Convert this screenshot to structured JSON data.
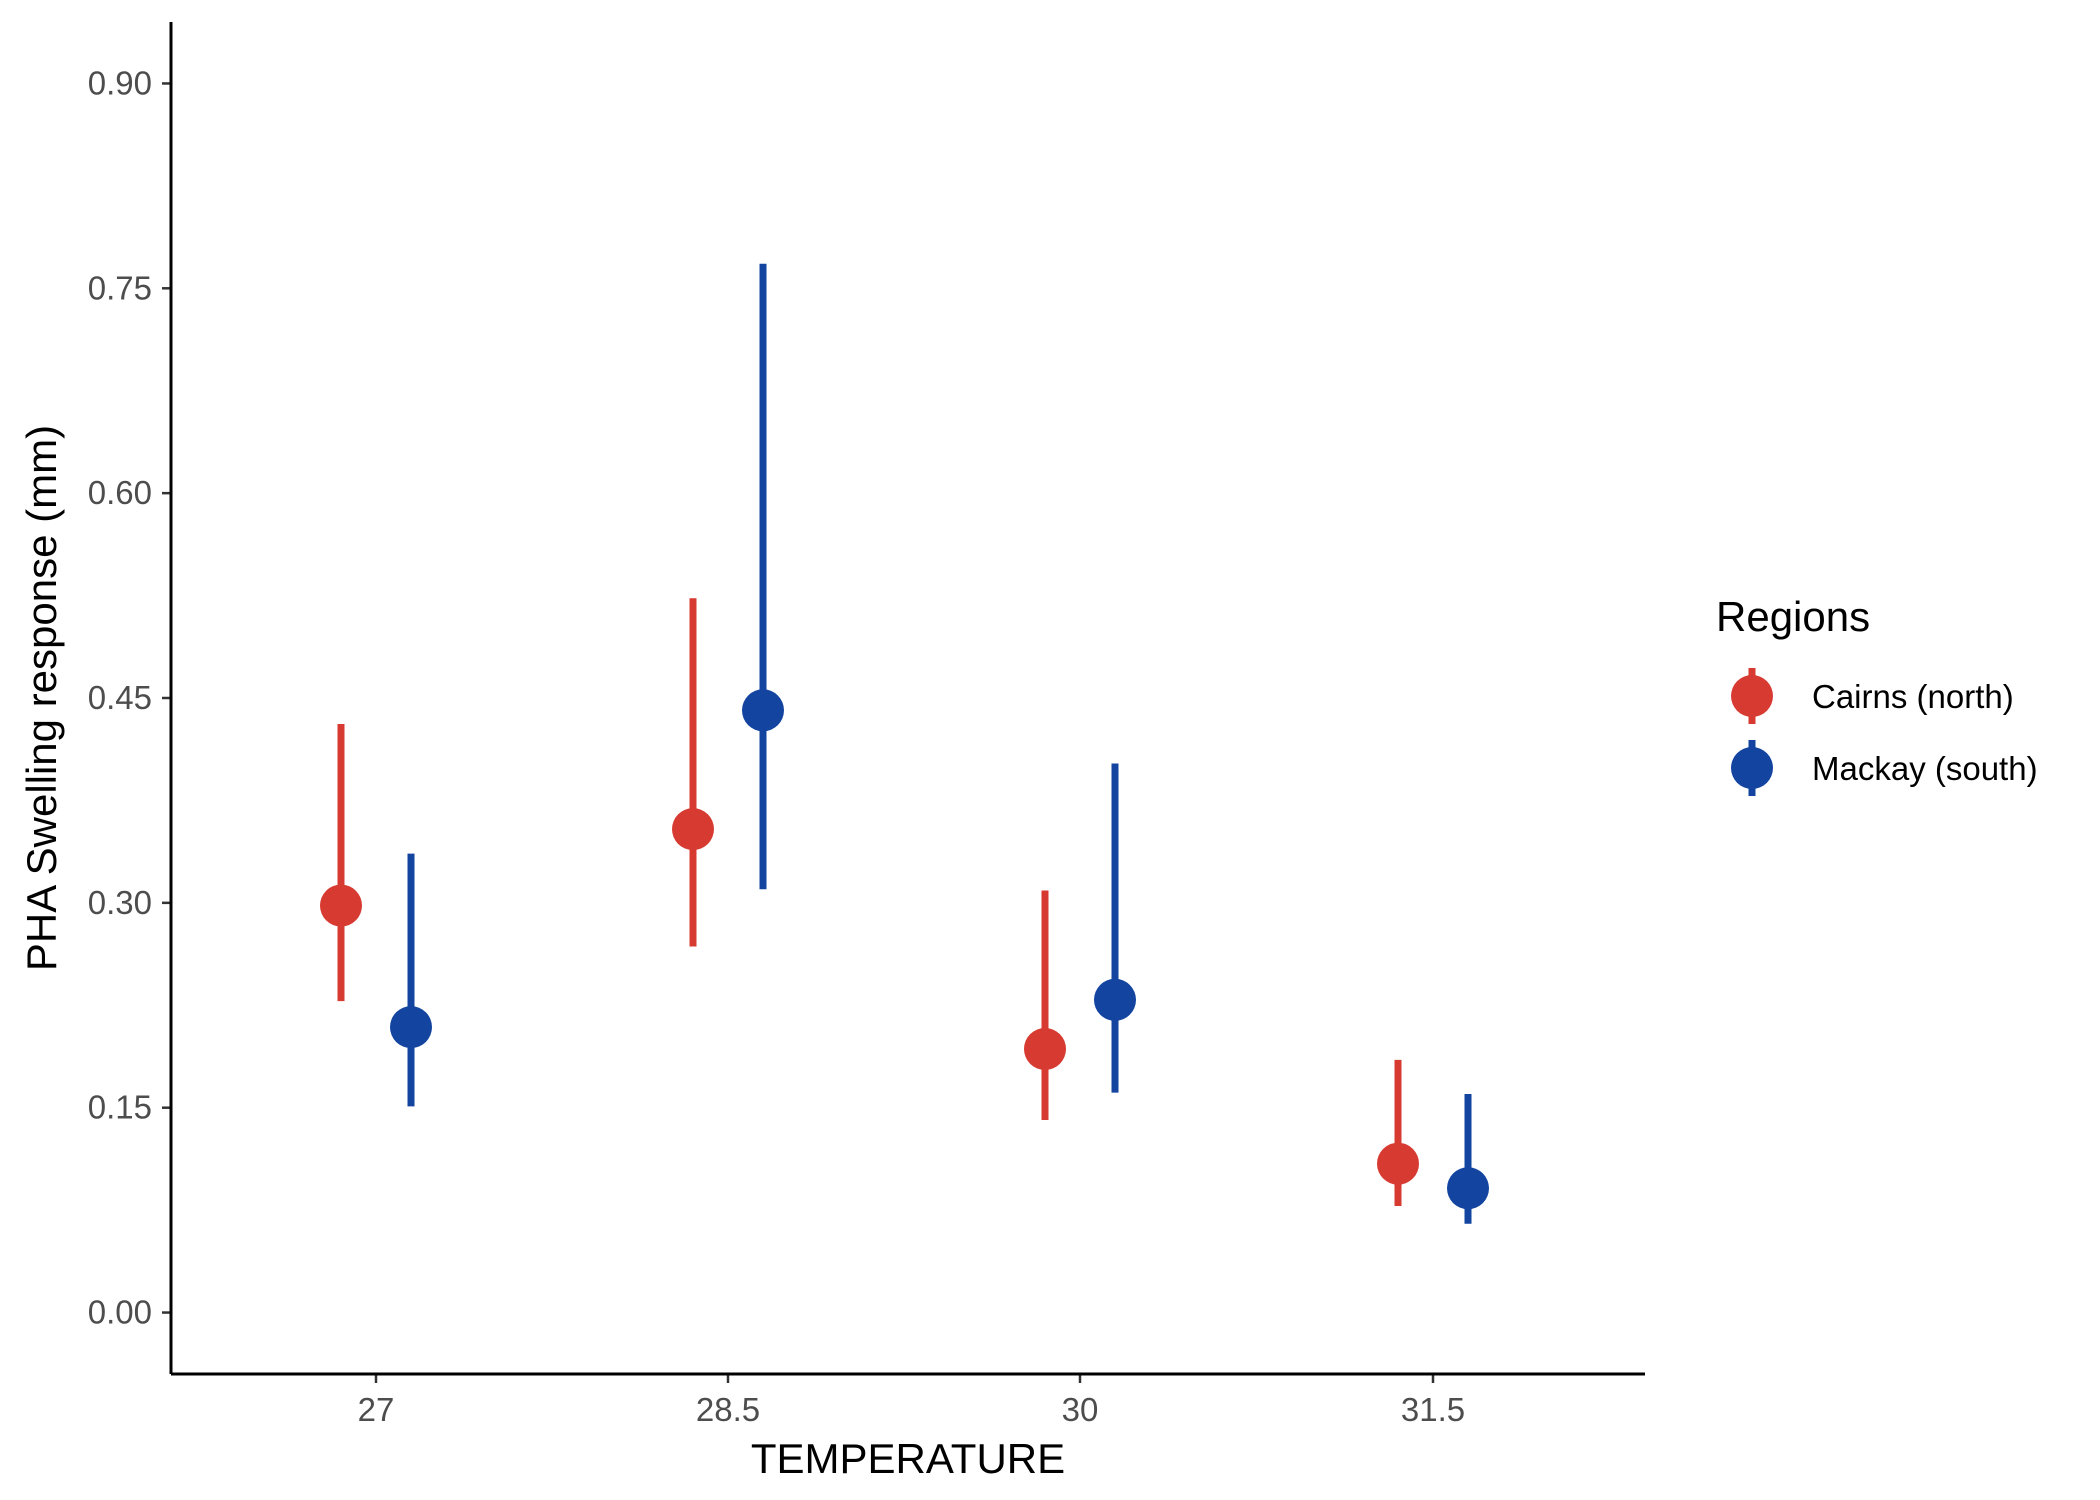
{
  "chart_data": {
    "type": "scatter",
    "subtype": "pointrange",
    "title": "",
    "xlabel": "TEMPERATURE",
    "ylabel": "PHA Swelling response (mm)",
    "categories": [
      "27",
      "28.5",
      "30",
      "31.5"
    ],
    "y_ticks": [
      "0.00",
      "0.15",
      "0.30",
      "0.45",
      "0.60",
      "0.75",
      "0.90"
    ],
    "ylim": [
      -0.045,
      0.945
    ],
    "grid": false,
    "legend": {
      "title": "Regions",
      "position": "right"
    },
    "series": [
      {
        "name": "Cairns (north)",
        "color": "#d73a31",
        "values": [
          0.298,
          0.354,
          0.193,
          0.109
        ],
        "lower": [
          0.228,
          0.268,
          0.141,
          0.078
        ],
        "upper": [
          0.431,
          0.523,
          0.309,
          0.185
        ]
      },
      {
        "name": "Mackay (south)",
        "color": "#1244a0",
        "values": [
          0.209,
          0.441,
          0.229,
          0.091
        ],
        "lower": [
          0.151,
          0.31,
          0.161,
          0.065
        ],
        "upper": [
          0.336,
          0.768,
          0.402,
          0.16
        ]
      }
    ]
  }
}
